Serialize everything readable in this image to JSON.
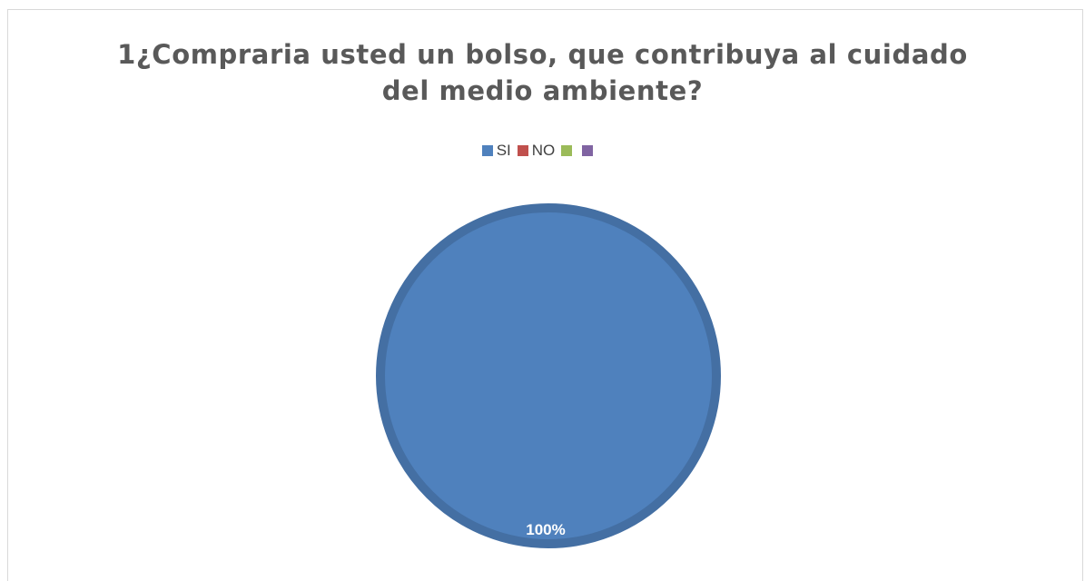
{
  "chart_data": {
    "type": "pie",
    "title": "1¿Compraria usted un bolso, que contribuya al cuidado del medio ambiente?",
    "title_lines": [
      "1¿Compraria usted un bolso, que contribuya al cuidado",
      "del medio ambiente?"
    ],
    "categories": [
      "SI",
      "NO",
      "",
      ""
    ],
    "values": [
      100,
      0,
      0,
      0
    ],
    "data_labels": [
      "100%"
    ],
    "colors": [
      "#4f81bd",
      "#c0504d",
      "#9bbb59",
      "#8064a2"
    ],
    "legend_position": "top"
  }
}
